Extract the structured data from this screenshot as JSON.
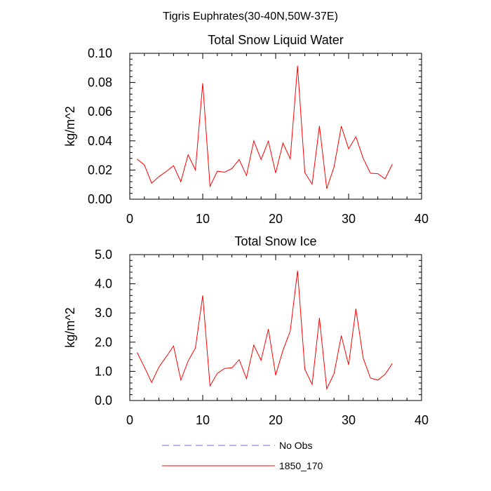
{
  "figure": {
    "title": "Tigris Euphrates(30-40N,50W-37E)"
  },
  "legend": {
    "placement": "bottom",
    "entries": [
      {
        "label": "No Obs",
        "color": "#6a6ad8",
        "style": "dashed"
      },
      {
        "label": "1850_170",
        "color": "#ff0000",
        "style": "solid"
      }
    ]
  },
  "chart_data": [
    {
      "type": "line",
      "title": "Total Snow Liquid Water",
      "xlabel": "",
      "ylabel": "kg/m^2",
      "xlim": [
        0,
        40
      ],
      "ylim": [
        0,
        0.1
      ],
      "xticks": [
        0,
        10,
        20,
        30,
        40
      ],
      "xtick_labels": [
        "0",
        "10",
        "20",
        "30",
        "40"
      ],
      "yticks": [
        0,
        0.02,
        0.04,
        0.06,
        0.08,
        0.1
      ],
      "ytick_labels": [
        "0.00",
        "0.02",
        "0.04",
        "0.06",
        "0.08",
        "0.10"
      ],
      "grid": false,
      "series": [
        {
          "name": "1850_170",
          "color": "#ff0000",
          "x": [
            1,
            2,
            3,
            4,
            5,
            6,
            7,
            8,
            9,
            10,
            11,
            12,
            13,
            14,
            15,
            16,
            17,
            18,
            19,
            20,
            21,
            22,
            23,
            24,
            25,
            26,
            27,
            28,
            29,
            30,
            31,
            32,
            33,
            34,
            35,
            36
          ],
          "y": [
            0.0275,
            0.0235,
            0.011,
            0.0155,
            0.019,
            0.023,
            0.012,
            0.0305,
            0.02,
            0.0795,
            0.0088,
            0.0192,
            0.0185,
            0.021,
            0.0272,
            0.0162,
            0.04,
            0.0272,
            0.0398,
            0.018,
            0.0385,
            0.0276,
            0.0915,
            0.0182,
            0.0103,
            0.0502,
            0.0072,
            0.022,
            0.05,
            0.0345,
            0.0428,
            0.028,
            0.0178,
            0.0175,
            0.014,
            0.024
          ]
        }
      ]
    },
    {
      "type": "line",
      "title": "Total Snow Ice",
      "xlabel": "",
      "ylabel": "kg/m^2",
      "xlim": [
        0,
        40
      ],
      "ylim": [
        0,
        5
      ],
      "xticks": [
        0,
        10,
        20,
        30,
        40
      ],
      "xtick_labels": [
        "0",
        "10",
        "20",
        "30",
        "40"
      ],
      "yticks": [
        0,
        1,
        2,
        3,
        4,
        5
      ],
      "ytick_labels": [
        "0.0",
        "1.0",
        "2.0",
        "3.0",
        "4.0",
        "5.0"
      ],
      "grid": false,
      "series": [
        {
          "name": "1850_170",
          "color": "#ff0000",
          "x": [
            1,
            2,
            3,
            4,
            5,
            6,
            7,
            8,
            9,
            10,
            11,
            12,
            13,
            14,
            15,
            16,
            17,
            18,
            19,
            20,
            21,
            22,
            23,
            24,
            25,
            26,
            27,
            28,
            29,
            30,
            31,
            32,
            33,
            34,
            35,
            36
          ],
          "y": [
            1.65,
            1.15,
            0.62,
            1.15,
            1.5,
            1.87,
            0.7,
            1.35,
            1.8,
            3.6,
            0.5,
            0.93,
            1.1,
            1.12,
            1.4,
            0.75,
            1.9,
            1.38,
            2.45,
            0.87,
            1.72,
            2.38,
            4.45,
            1.07,
            0.55,
            2.83,
            0.4,
            0.92,
            2.22,
            1.22,
            3.15,
            1.45,
            0.77,
            0.7,
            0.9,
            1.27
          ]
        }
      ]
    }
  ]
}
